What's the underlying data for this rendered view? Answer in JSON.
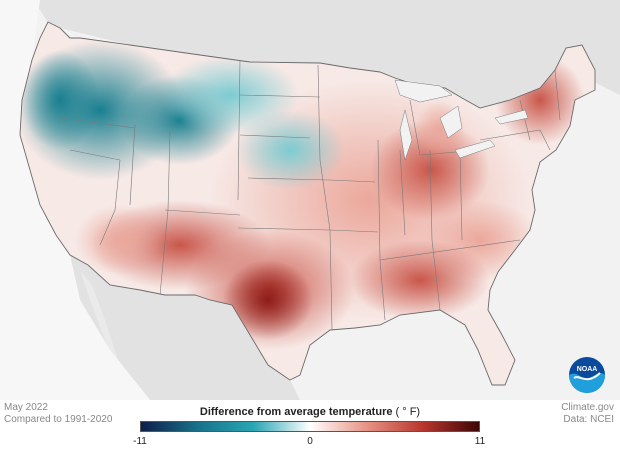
{
  "map": {
    "period": "May 2022",
    "baseline": "Compared to 1991-2020",
    "source_site": "Climate.gov",
    "source_data": "Data: NCEI",
    "logo_icon": "noaa-logo",
    "logo_text": "NOAA"
  },
  "legend": {
    "title": "Difference from average temperature",
    "unit": "( ° F)",
    "min_label": "-11",
    "mid_label": "0",
    "max_label": "11",
    "colors": [
      "#0f1d4a",
      "#17718a",
      "#2aa6b4",
      "#ffffff",
      "#e79385",
      "#b8362e",
      "#3d0505"
    ]
  }
}
